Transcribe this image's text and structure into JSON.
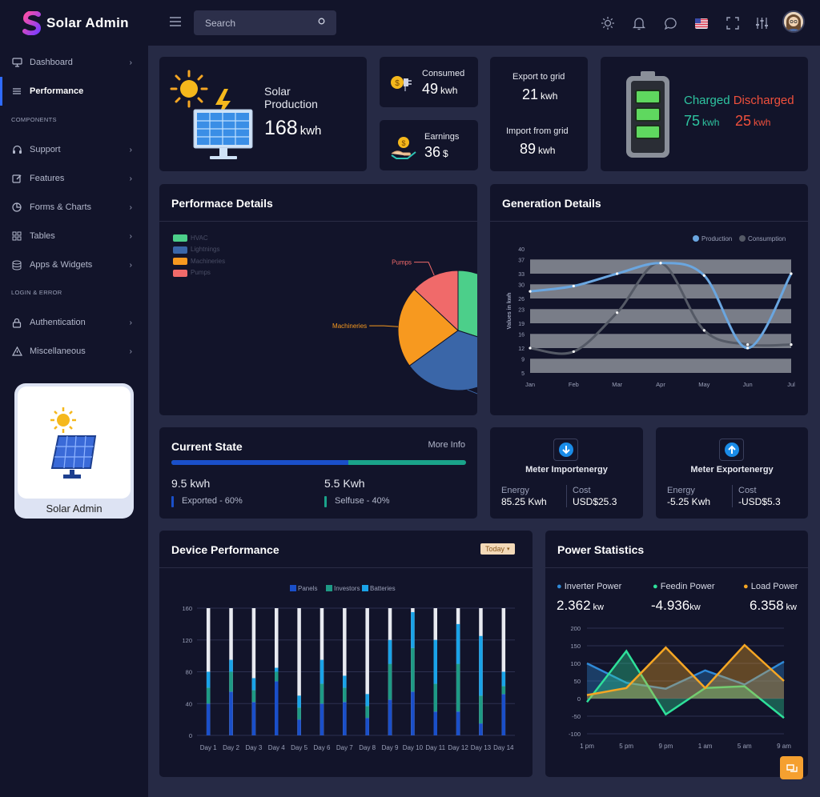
{
  "app": {
    "name": "Solar Admin"
  },
  "sidebar": {
    "items": [
      {
        "label": "Dashboard",
        "icon": "monitor-icon"
      },
      {
        "label": "Performance",
        "icon": "menu-lines-icon"
      }
    ],
    "section_components": "COMPONENTS",
    "component_items": [
      {
        "label": "Support",
        "icon": "headphones-icon"
      },
      {
        "label": "Features",
        "icon": "edit-icon"
      },
      {
        "label": "Forms & Charts",
        "icon": "pie-icon"
      },
      {
        "label": "Tables",
        "icon": "grid-icon"
      },
      {
        "label": "Apps & Widgets",
        "icon": "database-icon"
      }
    ],
    "section_login": "LOGIN & ERROR",
    "login_items": [
      {
        "label": "Authentication",
        "icon": "lock-icon"
      },
      {
        "label": "Miscellaneous",
        "icon": "warning-icon"
      }
    ],
    "promo_label": "Solar Admin"
  },
  "topbar": {
    "search_placeholder": "Search"
  },
  "solar": {
    "title_line1": "Solar",
    "title_line2": "Production",
    "value": "168",
    "unit": "kwh"
  },
  "consumed": {
    "label": "Consumed",
    "value": "49",
    "unit": "kwh"
  },
  "earnings": {
    "label": "Earnings",
    "value": "36",
    "unit": "$"
  },
  "grid": {
    "export_label": "Export to grid",
    "export_value": "21",
    "export_unit": "kwh",
    "import_label": "Import from grid",
    "import_value": "89",
    "import_unit": "kwh"
  },
  "battery": {
    "charged_label": "Charged",
    "discharged_label": "Discharged",
    "charged_value": "75",
    "charged_unit": "kwh",
    "discharged_value": "25",
    "discharged_unit": "kwh",
    "charged_color": "#2ec4a0",
    "discharged_color": "#f0503c"
  },
  "performance_details": {
    "title": "Performace Details"
  },
  "generation_details": {
    "title": "Generation Details"
  },
  "current_state": {
    "title": "Current State",
    "more_info": "More Info",
    "exported_fraction": 0.6,
    "left_value": "9.5 kwh",
    "left_label": "Exported - 60%",
    "right_value": "5.5 Kwh",
    "right_label": "Selfuse - 40%"
  },
  "meter_import": {
    "title": "Meter Importenergy",
    "energy_label": "Energy",
    "energy_value": "85.25 Kwh",
    "cost_label": "Cost",
    "cost_value": "USD$25.3"
  },
  "meter_export": {
    "title": "Meter Exportenergy",
    "energy_label": "Energy",
    "energy_value": "-5.25 Kwh",
    "cost_label": "Cost",
    "cost_value": "-USD$5.3"
  },
  "device_performance": {
    "title": "Device Performance",
    "filter": "Today"
  },
  "power_statistics": {
    "title": "Power Statistics",
    "stats": [
      {
        "label": "Inverter Power",
        "value": "2.362",
        "unit": "kw",
        "color": "#2f8ad8"
      },
      {
        "label": "Feedin Power",
        "value": "-4.936",
        "unit": "kw",
        "color": "#2ee09a"
      },
      {
        "label": "Load Power",
        "value": "6.358",
        "unit": "kw",
        "color": "#f5a623"
      }
    ]
  },
  "chart_data": [
    {
      "type": "pie",
      "legend": [
        "HVAC",
        "Lightnings",
        "Machineries",
        "Pumps"
      ],
      "values": [
        30,
        35,
        22,
        13
      ],
      "colors": [
        "#4ccf8a",
        "#3a66a8",
        "#f7991f",
        "#f06a6a"
      ],
      "labels_shown": [
        "Pumps",
        "Machineries"
      ],
      "legend_position": "top-left"
    },
    {
      "type": "line",
      "categories": [
        "Jan",
        "Feb",
        "Mar",
        "Apr",
        "May",
        "Jun",
        "Jul"
      ],
      "series": [
        {
          "name": "Production",
          "values": [
            28,
            29.5,
            33,
            36,
            32.5,
            12,
            33
          ],
          "color": "#6aa6e0"
        },
        {
          "name": "Consumption",
          "values": [
            12,
            11,
            22,
            36,
            17,
            13,
            13
          ],
          "color": "#555a66"
        }
      ],
      "ylabel": "Values in kwh",
      "yticks": [
        5,
        9,
        12,
        16,
        19,
        23,
        26,
        30,
        33,
        37,
        40
      ],
      "ylim": [
        5,
        40
      ],
      "legend_position": "top-right",
      "grid": true
    },
    {
      "type": "bar",
      "stacked": true,
      "categories": [
        "Day 1",
        "Day 2",
        "Day 3",
        "Day 4",
        "Day 5",
        "Day 6",
        "Day 7",
        "Day 8",
        "Day 9",
        "Day 10",
        "Day 11",
        "Day 12",
        "Day 13",
        "Day 14"
      ],
      "series": [
        {
          "name": "Panels",
          "values": [
            40,
            55,
            42,
            68,
            20,
            40,
            42,
            22,
            45,
            55,
            30,
            30,
            15,
            52
          ],
          "color": "#1a4fc9"
        },
        {
          "name": "Investors",
          "values": [
            20,
            25,
            15,
            12,
            15,
            25,
            18,
            15,
            45,
            55,
            35,
            60,
            35,
            10
          ],
          "color": "#1e9a85"
        },
        {
          "name": "Batteries",
          "values": [
            20,
            15,
            15,
            5,
            15,
            30,
            15,
            15,
            30,
            45,
            55,
            50,
            75,
            18
          ],
          "color": "#1aa3e8"
        }
      ],
      "ylim": [
        0,
        160
      ],
      "yticks": [
        0,
        40,
        80,
        120,
        160
      ],
      "legend_position": "top"
    },
    {
      "type": "area",
      "categories": [
        "1 pm",
        "5 pm",
        "9 pm",
        "1 am",
        "5 am",
        "9 am"
      ],
      "series": [
        {
          "name": "Inverter Power",
          "values": [
            100,
            45,
            28,
            80,
            40,
            105
          ],
          "color": "#2f8ad8"
        },
        {
          "name": "Feedin Power",
          "values": [
            -10,
            135,
            -45,
            30,
            35,
            -55
          ],
          "color": "#2ee09a"
        },
        {
          "name": "Load Power",
          "values": [
            10,
            30,
            145,
            30,
            152,
            50
          ],
          "color": "#f5a623"
        }
      ],
      "ylim": [
        -100,
        200
      ],
      "yticks": [
        -100,
        -50,
        0,
        50,
        100,
        150,
        200
      ]
    }
  ]
}
